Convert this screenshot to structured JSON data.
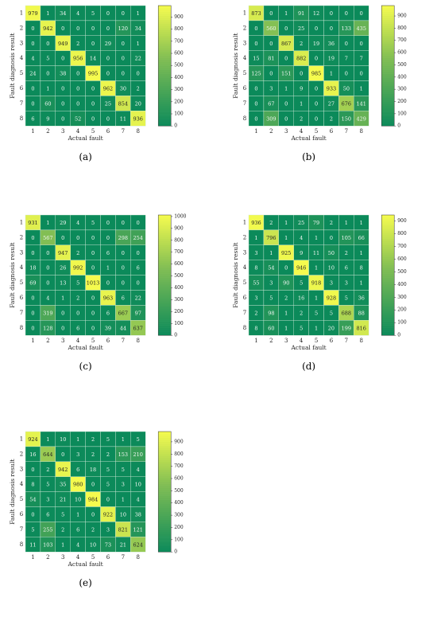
{
  "colormap": {
    "low": "#0b8a5a",
    "mid": "#7fbd54",
    "high": "#f5fb4e"
  },
  "chart_data": [
    {
      "type": "heatmap",
      "panel_label": "(a)",
      "xlabel": "Actual fault",
      "ylabel": "Fault diagnosis result",
      "x_categories": [
        "1",
        "2",
        "3",
        "4",
        "5",
        "6",
        "7",
        "8"
      ],
      "y_categories": [
        "1",
        "2",
        "3",
        "4",
        "5",
        "6",
        "7",
        "8"
      ],
      "colorbar_ticks": [
        0,
        100,
        200,
        300,
        400,
        500,
        600,
        700,
        800,
        900
      ],
      "vmax": 995,
      "matrix": [
        [
          979,
          1,
          34,
          4,
          5,
          0,
          0,
          1
        ],
        [
          0,
          942,
          0,
          0,
          0,
          0,
          120,
          34
        ],
        [
          0,
          0,
          949,
          2,
          0,
          29,
          0,
          1
        ],
        [
          4,
          5,
          0,
          956,
          14,
          0,
          0,
          22
        ],
        [
          24,
          0,
          38,
          0,
          995,
          0,
          0,
          0
        ],
        [
          0,
          1,
          0,
          0,
          0,
          962,
          30,
          2
        ],
        [
          0,
          60,
          0,
          0,
          0,
          25,
          854,
          20
        ],
        [
          6,
          9,
          0,
          52,
          0,
          0,
          11,
          936
        ]
      ]
    },
    {
      "type": "heatmap",
      "panel_label": "(b)",
      "xlabel": "Actual fault",
      "ylabel": "Fault diagnosis result",
      "x_categories": [
        "1",
        "2",
        "3",
        "4",
        "5",
        "6",
        "7",
        "8"
      ],
      "y_categories": [
        "1",
        "2",
        "3",
        "4",
        "5",
        "6",
        "7",
        "8"
      ],
      "colorbar_ticks": [
        0,
        100,
        200,
        300,
        400,
        500,
        600,
        700,
        800,
        900
      ],
      "vmax": 985,
      "matrix": [
        [
          873,
          0,
          1,
          91,
          12,
          0,
          0,
          0
        ],
        [
          0,
          560,
          0,
          25,
          0,
          0,
          133,
          435
        ],
        [
          0,
          0,
          867,
          2,
          19,
          36,
          0,
          0
        ],
        [
          15,
          81,
          0,
          882,
          0,
          19,
          7,
          7
        ],
        [
          125,
          0,
          151,
          0,
          985,
          1,
          0,
          0
        ],
        [
          0,
          3,
          1,
          9,
          0,
          933,
          50,
          1
        ],
        [
          0,
          67,
          0,
          1,
          0,
          27,
          676,
          141
        ],
        [
          0,
          309,
          0,
          2,
          0,
          2,
          150,
          429
        ]
      ]
    },
    {
      "type": "heatmap",
      "panel_label": "(c)",
      "xlabel": "Actual fault",
      "ylabel": "Fault diagnosis result",
      "x_categories": [
        "1",
        "2",
        "3",
        "4",
        "5",
        "6",
        "7",
        "8"
      ],
      "y_categories": [
        "1",
        "2",
        "3",
        "4",
        "5",
        "6",
        "7",
        "8"
      ],
      "colorbar_ticks": [
        0,
        100,
        200,
        300,
        400,
        500,
        600,
        700,
        800,
        900,
        1000
      ],
      "vmax": 1013,
      "matrix": [
        [
          931,
          1,
          29,
          4,
          5,
          0,
          0,
          0
        ],
        [
          0,
          567,
          0,
          0,
          0,
          0,
          298,
          254
        ],
        [
          0,
          0,
          947,
          2,
          0,
          6,
          0,
          0
        ],
        [
          18,
          0,
          26,
          992,
          0,
          1,
          0,
          6
        ],
        [
          69,
          0,
          13,
          5,
          1013,
          0,
          0,
          0
        ],
        [
          0,
          4,
          1,
          2,
          0,
          963,
          6,
          22
        ],
        [
          0,
          319,
          0,
          0,
          0,
          6,
          667,
          97
        ],
        [
          0,
          128,
          0,
          6,
          0,
          39,
          44,
          637
        ]
      ]
    },
    {
      "type": "heatmap",
      "panel_label": "(d)",
      "xlabel": "Actual fault",
      "ylabel": "Fault diagnosis result",
      "x_categories": [
        "1",
        "2",
        "3",
        "4",
        "5",
        "6",
        "7",
        "8"
      ],
      "y_categories": [
        "1",
        "2",
        "3",
        "4",
        "5",
        "6",
        "7",
        "8"
      ],
      "colorbar_ticks": [
        0,
        100,
        200,
        300,
        400,
        500,
        600,
        700,
        800,
        900
      ],
      "vmax": 946,
      "matrix": [
        [
          936,
          2,
          1,
          25,
          79,
          2,
          1,
          1
        ],
        [
          1,
          796,
          1,
          4,
          1,
          0,
          105,
          66
        ],
        [
          3,
          1,
          925,
          9,
          11,
          50,
          2,
          1
        ],
        [
          8,
          54,
          0,
          946,
          1,
          10,
          6,
          8
        ],
        [
          55,
          3,
          90,
          5,
          918,
          3,
          3,
          1
        ],
        [
          3,
          5,
          2,
          16,
          1,
          928,
          5,
          36
        ],
        [
          2,
          98,
          1,
          2,
          5,
          5,
          688,
          88
        ],
        [
          8,
          60,
          1,
          5,
          1,
          20,
          199,
          816
        ]
      ]
    },
    {
      "type": "heatmap",
      "panel_label": "(e)",
      "xlabel": "Actual fault",
      "ylabel": "Fault diagnosis result",
      "x_categories": [
        "1",
        "2",
        "3",
        "4",
        "5",
        "6",
        "7",
        "8"
      ],
      "y_categories": [
        "1",
        "2",
        "3",
        "4",
        "5",
        "6",
        "7",
        "8"
      ],
      "colorbar_ticks": [
        0,
        100,
        200,
        300,
        400,
        500,
        600,
        700,
        800,
        900
      ],
      "vmax": 984,
      "matrix": [
        [
          924,
          1,
          10,
          1,
          2,
          5,
          1,
          5
        ],
        [
          16,
          644,
          0,
          3,
          2,
          2,
          153,
          210
        ],
        [
          0,
          2,
          942,
          6,
          18,
          5,
          5,
          4
        ],
        [
          8,
          5,
          35,
          980,
          0,
          5,
          3,
          10
        ],
        [
          54,
          3,
          21,
          10,
          984,
          0,
          1,
          4
        ],
        [
          0,
          6,
          5,
          1,
          0,
          922,
          10,
          38
        ],
        [
          5,
          255,
          2,
          6,
          2,
          3,
          821,
          121
        ],
        [
          11,
          103,
          1,
          4,
          10,
          73,
          21,
          624
        ]
      ]
    }
  ]
}
